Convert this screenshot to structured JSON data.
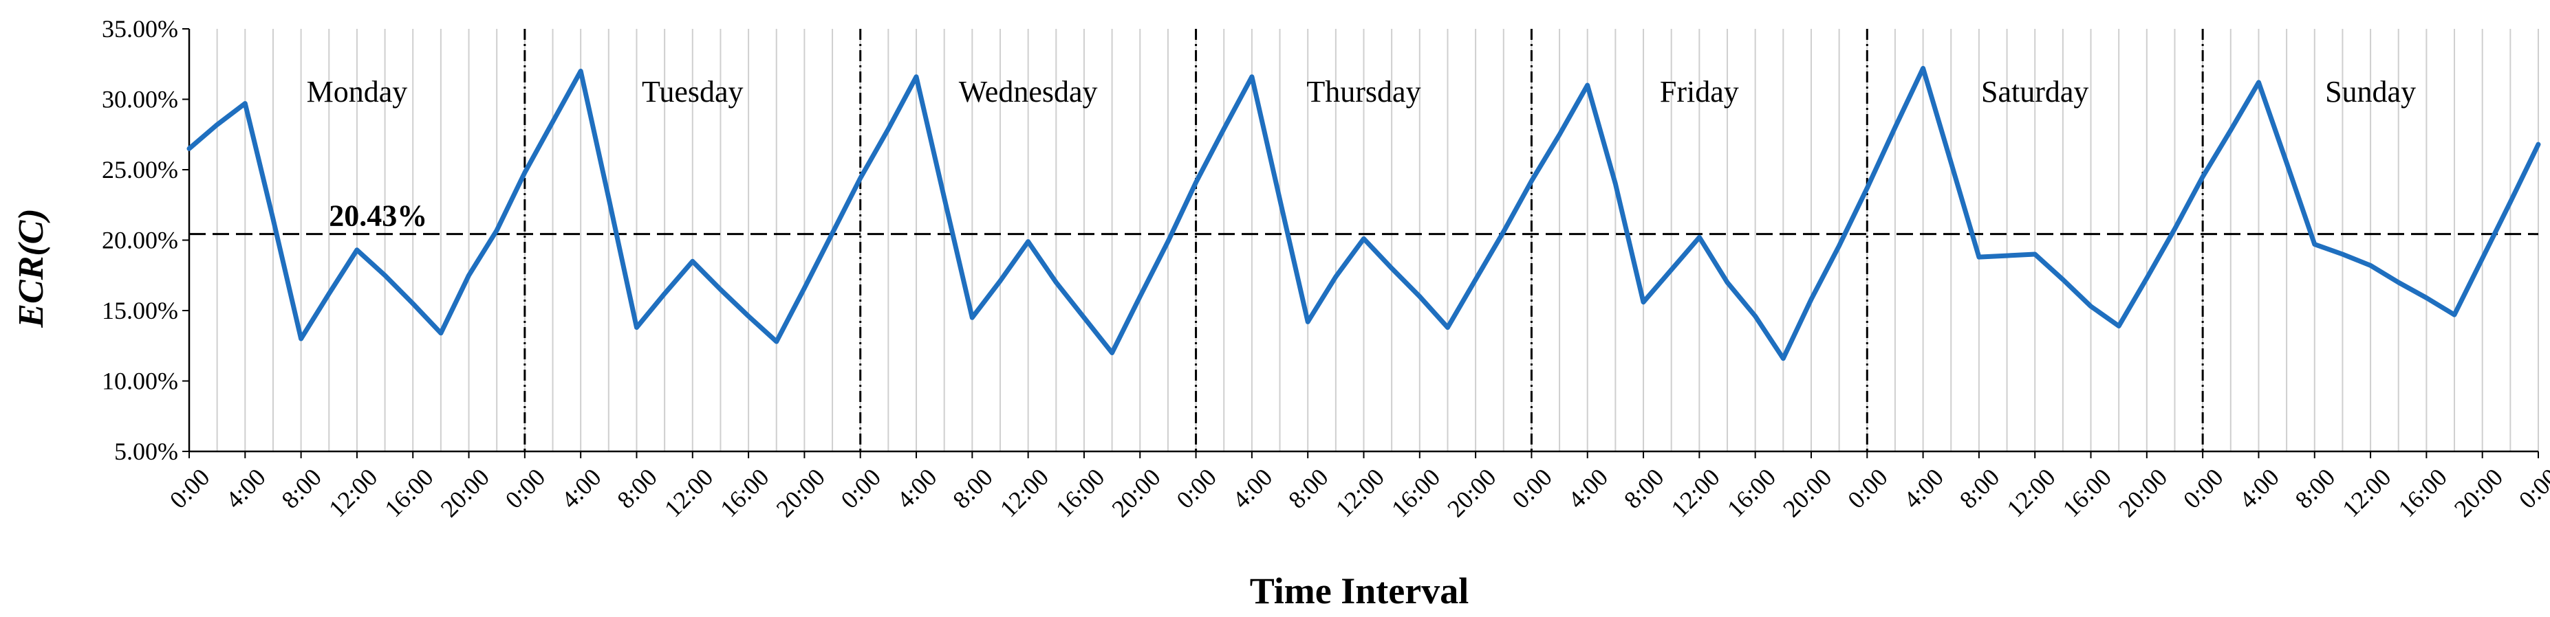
{
  "chart_data": {
    "type": "line",
    "ylabel": "ECR(C)",
    "xlabel": "Time Interval",
    "ylim": [
      5,
      35
    ],
    "yticks": [
      "5.00%",
      "10.00%",
      "15.00%",
      "20.00%",
      "25.00%",
      "30.00%",
      "35.00%"
    ],
    "ytick_values": [
      5,
      10,
      15,
      20,
      25,
      30,
      35
    ],
    "grid": "vertical",
    "line_color": "#1f6fbf",
    "days": [
      "Monday",
      "Tuesday",
      "Wednesday",
      "Thursday",
      "Friday",
      "Saturday",
      "Sunday"
    ],
    "x_tick_labels": [
      "0:00",
      "4:00",
      "8:00",
      "12:00",
      "16:00",
      "20:00"
    ],
    "final_tick_label": "0:00",
    "reference_line": {
      "value": 20.43,
      "label": "20.43%"
    },
    "x_hours": [
      0,
      2,
      4,
      6,
      8,
      10,
      12,
      14,
      16,
      18,
      20,
      22,
      24,
      26,
      28,
      30,
      32,
      34,
      36,
      38,
      40,
      42,
      44,
      46,
      48,
      50,
      52,
      54,
      56,
      58,
      60,
      62,
      64,
      66,
      68,
      70,
      72,
      74,
      76,
      78,
      80,
      82,
      84,
      86,
      88,
      90,
      92,
      94,
      96,
      98,
      100,
      102,
      104,
      106,
      108,
      110,
      112,
      114,
      116,
      118,
      120,
      122,
      124,
      126,
      128,
      130,
      132,
      134,
      136,
      138,
      140,
      142,
      144,
      146,
      148,
      150,
      152,
      154,
      156,
      158,
      160,
      162,
      164,
      166,
      168
    ],
    "values": [
      26.5,
      28.2,
      29.7,
      21.5,
      13.0,
      16.2,
      19.3,
      17.5,
      15.5,
      13.4,
      17.5,
      20.7,
      24.8,
      28.4,
      32.0,
      23.0,
      13.8,
      16.2,
      18.5,
      16.5,
      14.6,
      12.8,
      16.6,
      20.5,
      24.4,
      27.9,
      31.6,
      23.0,
      14.5,
      17.1,
      19.9,
      17.0,
      14.5,
      12.0,
      16.0,
      19.9,
      24.1,
      27.9,
      31.6,
      22.9,
      14.2,
      17.4,
      20.1,
      18.0,
      16.0,
      13.8,
      17.2,
      20.6,
      24.2,
      27.5,
      31.0,
      24.0,
      15.6,
      17.9,
      20.2,
      17.0,
      14.6,
      11.6,
      15.8,
      19.6,
      23.7,
      28.0,
      32.2,
      25.5,
      18.8,
      18.9,
      19.0,
      17.2,
      15.3,
      13.9,
      17.3,
      20.8,
      24.5,
      27.8,
      31.2,
      25.5,
      19.7,
      19.0,
      18.2,
      17.0,
      15.9,
      14.7,
      18.7,
      22.7,
      26.8
    ]
  }
}
